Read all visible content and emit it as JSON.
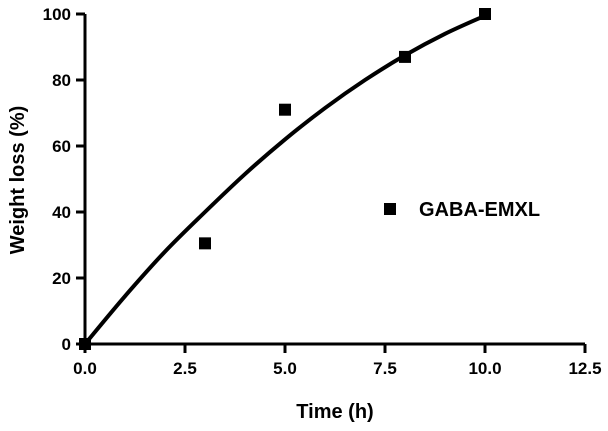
{
  "chart_data": {
    "type": "scatter",
    "xlabel": "Time (h)",
    "ylabel": "Weight loss (%)",
    "xlim": [
      0,
      12.5
    ],
    "ylim": [
      0,
      100
    ],
    "x_ticks": [
      "0.0",
      "2.5",
      "5.0",
      "7.5",
      "10.0",
      "12.5"
    ],
    "y_ticks": [
      "0",
      "20",
      "40",
      "60",
      "80",
      "100"
    ],
    "grid": false,
    "legend_position": "right",
    "series": [
      {
        "name": "GABA-EMXL",
        "marker": "square",
        "color": "#000000",
        "points": [
          {
            "x": 0,
            "y": 0
          },
          {
            "x": 3,
            "y": 30.5
          },
          {
            "x": 5,
            "y": 71
          },
          {
            "x": 8,
            "y": 87
          },
          {
            "x": 10,
            "y": 100
          }
        ]
      }
    ],
    "fit_curve": {
      "color": "#000000",
      "points": [
        {
          "x": 0,
          "y": 0
        },
        {
          "x": 1,
          "y": 14.5
        },
        {
          "x": 2,
          "y": 28
        },
        {
          "x": 3,
          "y": 40
        },
        {
          "x": 4,
          "y": 51.5
        },
        {
          "x": 5,
          "y": 62
        },
        {
          "x": 6,
          "y": 71.5
        },
        {
          "x": 7,
          "y": 80
        },
        {
          "x": 8,
          "y": 87.5
        },
        {
          "x": 9,
          "y": 94
        },
        {
          "x": 10,
          "y": 99.5
        }
      ]
    }
  }
}
